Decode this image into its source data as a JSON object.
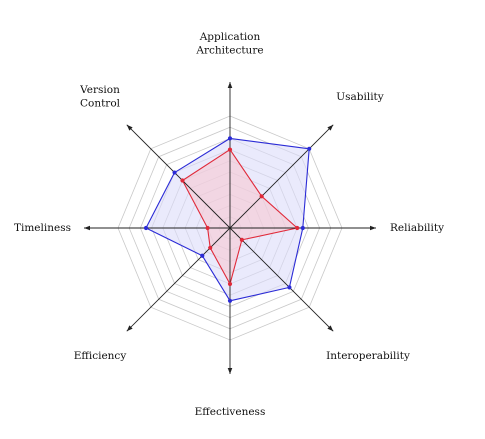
{
  "chart_data": {
    "type": "radar",
    "axes": [
      "Application Architecture",
      "Usability",
      "Reliability",
      "Interoperability",
      "Effectiveness",
      "Efficiency",
      "Timeliness",
      "Version Control"
    ],
    "axis_label_lines": [
      [
        "Application",
        "Architecture"
      ],
      [
        "Usability"
      ],
      [
        "Reliability"
      ],
      [
        "Interoperability"
      ],
      [
        "Effectiveness"
      ],
      [
        "Efficiency"
      ],
      [
        "Timeliness"
      ],
      [
        "Version",
        "Control"
      ]
    ],
    "range": [
      0,
      10
    ],
    "grid_levels": 10,
    "grid": true,
    "series": [
      {
        "color": "#2b2bd6",
        "fill": "#dcdcfa",
        "values": [
          8.0,
          10.0,
          6.5,
          7.5,
          6.5,
          3.5,
          7.5,
          7.0
        ]
      },
      {
        "color": "#e02a3a",
        "fill": "#f6c8d2",
        "values": [
          7.0,
          4.0,
          6.0,
          1.5,
          5.0,
          2.5,
          2.0,
          6.0
        ]
      }
    ]
  }
}
